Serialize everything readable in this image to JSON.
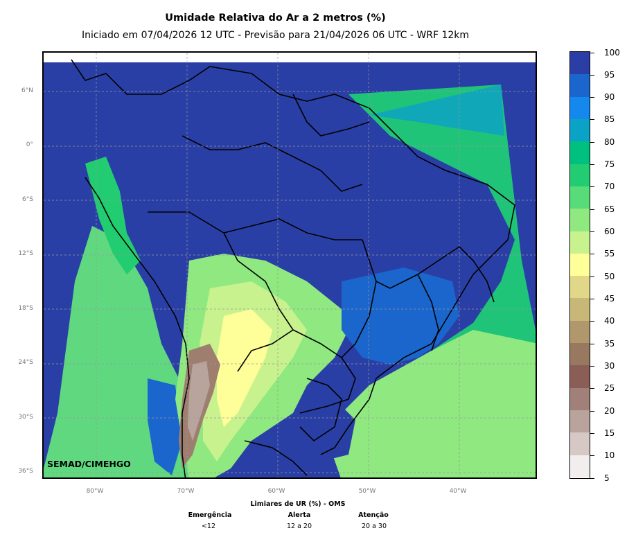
{
  "title": "Umidade Relativa do Ar a 2 metros (%)",
  "subtitle": "Iniciado em 07/04/2026 12 UTC - Previsão para 21/04/2026 06 UTC - WRF 12km",
  "watermark": "SEMAD/CIMEHGO",
  "map": {
    "lat_labels": [
      "6°N",
      "0°",
      "6°S",
      "12°S",
      "18°S",
      "24°S",
      "30°S",
      "36°S"
    ],
    "lon_labels": [
      "80°W",
      "70°W",
      "60°W",
      "50°W",
      "40°W"
    ],
    "colors": {
      "ocean_north": "#2a3fa5",
      "land_wet": "#2a3fa5",
      "ocean_east": "#1fc479",
      "ocean_south": "#5fd880",
      "andes": "#9e7f6f",
      "border": "#000000"
    }
  },
  "colorbar": {
    "labels": [
      "100",
      "95",
      "90",
      "85",
      "80",
      "75",
      "70",
      "65",
      "60",
      "55",
      "50",
      "45",
      "40",
      "35",
      "30",
      "25",
      "20",
      "15",
      "10",
      "5"
    ],
    "colors": [
      "#2b3ea6",
      "#1a66cc",
      "#1588ee",
      "#0aa3c6",
      "#00c080",
      "#22cc70",
      "#58dc7a",
      "#8fe880",
      "#c8f28e",
      "#ffff99",
      "#e0d888",
      "#c8b878",
      "#b0986c",
      "#98785e",
      "#8a5e56",
      "#a08078",
      "#b8a49c",
      "#d6c8c4",
      "#f2eeee"
    ]
  },
  "legend": {
    "title": "Limiares de UR (%) - OMS",
    "items": [
      {
        "name": "Emergência",
        "range": "<12"
      },
      {
        "name": "Alerta",
        "range": "12 a 20"
      },
      {
        "name": "Atenção",
        "range": "20 a 30"
      }
    ]
  }
}
